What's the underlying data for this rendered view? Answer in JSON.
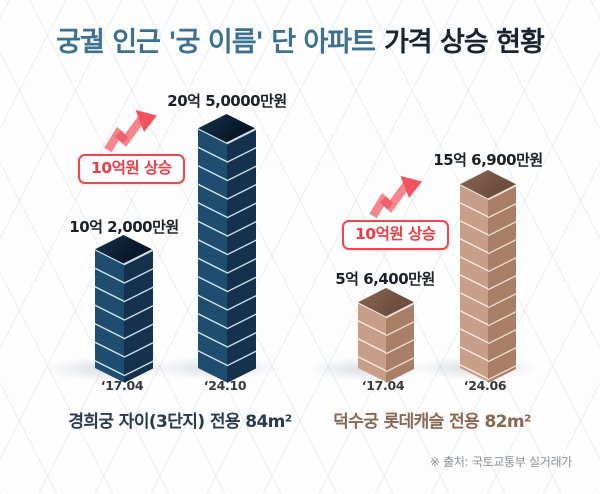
{
  "title": {
    "highlight": "궁궐 인근 '궁 이름' 단 아파트",
    "rest": "가격 상승 현황"
  },
  "groups": [
    {
      "name": "경희궁 자이(3단지) 전용 84m²",
      "badge": "10억원 상승",
      "bars": [
        {
          "date": "‘17.04",
          "price": "10억 2,000만원",
          "value": 10.2
        },
        {
          "date": "‘24.10",
          "price": "20억 5,0000만원",
          "value": 20.5
        }
      ]
    },
    {
      "name": "덕수궁 롯데캐슬 전용 82m²",
      "badge": "10억원 상승",
      "bars": [
        {
          "date": "‘17.04",
          "price": "5억 6,400만원",
          "value": 5.64
        },
        {
          "date": "‘24.06",
          "price": "15억 6,900만원",
          "value": 15.69
        }
      ]
    }
  ],
  "source": "※ 출처: 국토교통부 실거래가",
  "colors": {
    "title_highlight": "#3c7190",
    "title_rest": "#1b2430",
    "accent_red": "#f4454f",
    "navy_left_face": "#1f4d70",
    "navy_right_face": "#14324d",
    "navy_top_face": "#0b1e32",
    "tan_left_face": "#c79e88",
    "tan_right_face": "#a97e67",
    "tan_top_face": "#7b5947"
  },
  "chart_data": {
    "type": "bar",
    "title": "궁궐 인근 '궁 이름' 단 아파트 가격 상승 현황",
    "unit": "억원",
    "legend_position": "none",
    "grid": "isometric-background",
    "groups": [
      {
        "label": "경희궁 자이(3단지) 전용 84m²",
        "categories": [
          "‘17.04",
          "‘24.10"
        ],
        "values": [
          10.2,
          20.5
        ],
        "value_labels": [
          "10억 2,000만원",
          "20억 5,0000만원"
        ],
        "annotation": "10억원 상승",
        "bar_color": "navy"
      },
      {
        "label": "덕수궁 롯데캐슬 전용 82m²",
        "categories": [
          "‘17.04",
          "‘24.06"
        ],
        "values": [
          5.64,
          15.69
        ],
        "value_labels": [
          "5억 6,400만원",
          "15억 6,900만원"
        ],
        "annotation": "10억원 상승",
        "bar_color": "tan"
      }
    ],
    "source": "※ 출처: 국토교통부 실거래가"
  }
}
